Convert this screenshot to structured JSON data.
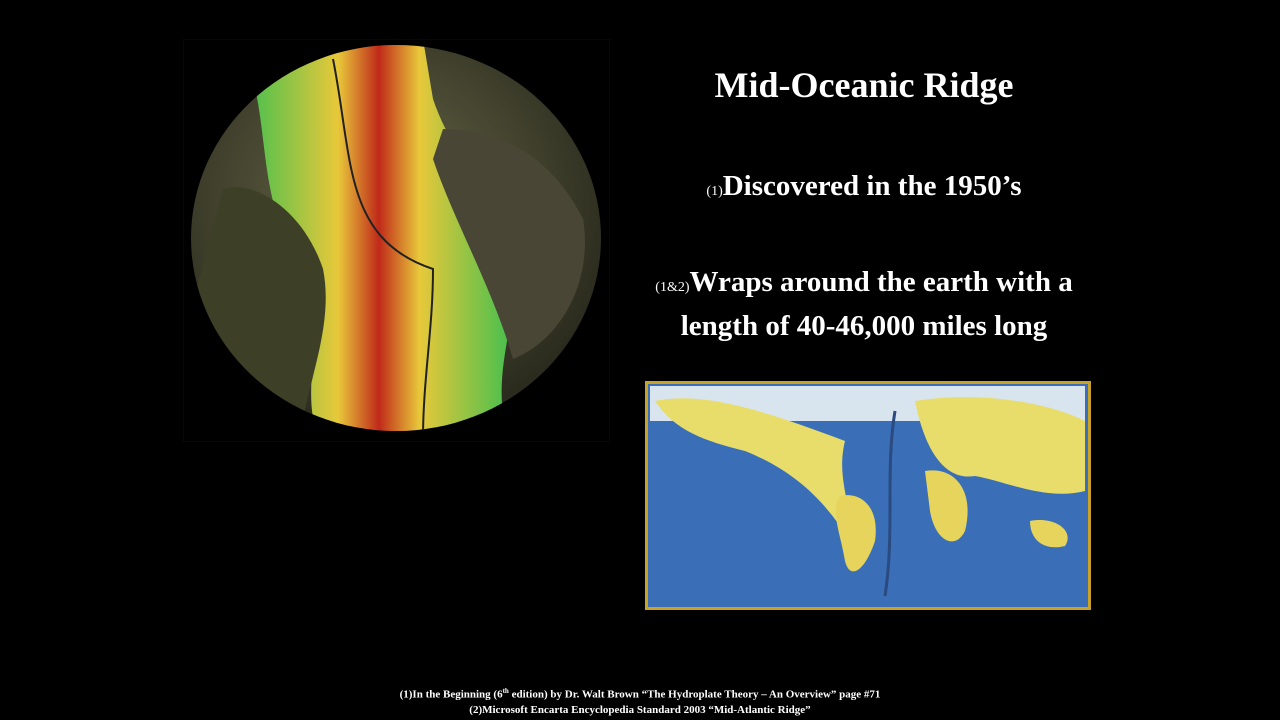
{
  "slide": {
    "title": "Mid-Oceanic Ridge",
    "points": [
      {
        "marker": "(1)",
        "text": "Discovered in the 1950’s"
      },
      {
        "marker": "(1&2)",
        "text": "Wraps around the earth with a length of 40-46,000 miles long"
      }
    ],
    "footnotes": [
      {
        "before": "(1)In the Beginning (6",
        "sup": "th",
        "after": " edition) by Dr. Walt Brown “The Hydroplate Theory – An Overview” page #71"
      },
      {
        "before": "(2)Microsoft Encarta Encyclopedia Standard 2003 “Mid-Atlantic Ridge”"
      }
    ]
  }
}
